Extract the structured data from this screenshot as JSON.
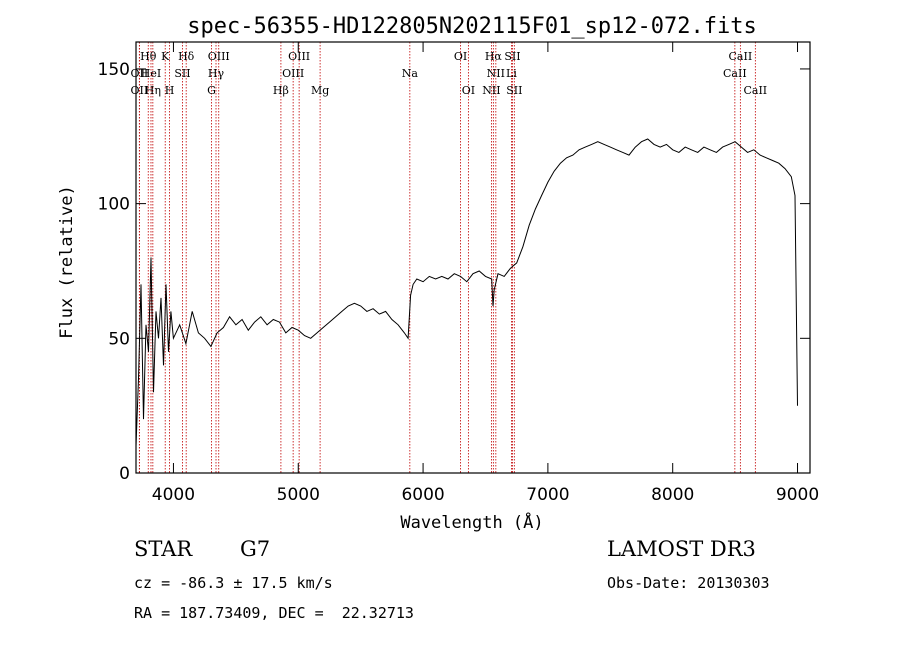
{
  "title": "spec-56355-HD122805N202115F01_sp12-072.fits",
  "footer": {
    "object_class": "STAR",
    "subclass": "G7",
    "survey": "LAMOST DR3",
    "cz": "cz = -86.3 ± 17.5 km/s",
    "obs_date": "Obs-Date: 20130303",
    "coords": "RA = 187.73409, DEC =  22.32713"
  },
  "chart_data": {
    "type": "line",
    "title": "spec-56355-HD122805N202115F01_sp12-072.fits",
    "xlabel": "Wavelength (Å)",
    "ylabel": "Flux (relative)",
    "xlim": [
      3700,
      9100
    ],
    "ylim": [
      0,
      160
    ],
    "xticks": [
      4000,
      5000,
      6000,
      7000,
      8000,
      9000
    ],
    "yticks": [
      0,
      50,
      100,
      150
    ],
    "grid": false,
    "series": [
      {
        "x": [
          3700,
          3720,
          3740,
          3760,
          3780,
          3800,
          3820,
          3840,
          3860,
          3880,
          3900,
          3920,
          3940,
          3960,
          3980,
          4000,
          4050,
          4100,
          4150,
          4200,
          4250,
          4300,
          4350,
          4400,
          4450,
          4500,
          4550,
          4600,
          4650,
          4700,
          4750,
          4800,
          4850,
          4900,
          4950,
          5000,
          5050,
          5100,
          5150,
          5200,
          5250,
          5300,
          5350,
          5400,
          5450,
          5500,
          5550,
          5600,
          5650,
          5700,
          5750,
          5800,
          5850,
          5880,
          5900,
          5920,
          5950,
          6000,
          6050,
          6100,
          6150,
          6200,
          6250,
          6300,
          6350,
          6400,
          6450,
          6500,
          6550,
          6560,
          6570,
          6600,
          6650,
          6700,
          6750,
          6800,
          6850,
          6900,
          6950,
          7000,
          7050,
          7100,
          7150,
          7200,
          7250,
          7300,
          7350,
          7400,
          7450,
          7500,
          7550,
          7600,
          7650,
          7700,
          7750,
          7800,
          7850,
          7900,
          7950,
          8000,
          8050,
          8100,
          8150,
          8200,
          8250,
          8300,
          8350,
          8400,
          8450,
          8500,
          8550,
          8600,
          8650,
          8700,
          8750,
          8800,
          8850,
          8900,
          8950,
          8980,
          9000
        ],
        "y": [
          10,
          35,
          70,
          20,
          55,
          45,
          80,
          30,
          60,
          50,
          65,
          40,
          70,
          45,
          60,
          50,
          55,
          48,
          60,
          52,
          50,
          47,
          52,
          54,
          58,
          55,
          57,
          53,
          56,
          58,
          55,
          57,
          56,
          52,
          54,
          53,
          51,
          50,
          52,
          54,
          56,
          58,
          60,
          62,
          63,
          62,
          60,
          61,
          59,
          60,
          57,
          55,
          52,
          50,
          66,
          70,
          72,
          71,
          73,
          72,
          73,
          72,
          74,
          73,
          71,
          74,
          75,
          73,
          72,
          62,
          68,
          74,
          73,
          76,
          78,
          84,
          92,
          98,
          103,
          108,
          112,
          115,
          117,
          118,
          120,
          121,
          122,
          123,
          122,
          121,
          120,
          119,
          118,
          121,
          123,
          124,
          122,
          121,
          122,
          120,
          119,
          121,
          120,
          119,
          121,
          120,
          119,
          121,
          122,
          123,
          121,
          119,
          120,
          118,
          117,
          116,
          115,
          113,
          110,
          103,
          25
        ]
      }
    ],
    "line_labels": [
      {
        "label": "OII",
        "wavelength": 3727,
        "row": 1
      },
      {
        "label": "OII",
        "wavelength": 3727,
        "row": 2
      },
      {
        "label": "Hθ",
        "wavelength": 3798,
        "row": 0
      },
      {
        "label": "HeI",
        "wavelength": 3820,
        "row": 1
      },
      {
        "label": "Hη",
        "wavelength": 3835,
        "row": 2
      },
      {
        "label": "K",
        "wavelength": 3934,
        "row": 0
      },
      {
        "label": "SII",
        "wavelength": 4072,
        "row": 1
      },
      {
        "label": "H",
        "wavelength": 3969,
        "row": 2
      },
      {
        "label": "Hδ",
        "wavelength": 4102,
        "row": 0
      },
      {
        "label": "OIII",
        "wavelength": 4363,
        "row": 0
      },
      {
        "label": "Hγ",
        "wavelength": 4341,
        "row": 1
      },
      {
        "label": "G",
        "wavelength": 4305,
        "row": 2
      },
      {
        "label": "OIII",
        "wavelength": 5007,
        "row": 0
      },
      {
        "label": "OIII",
        "wavelength": 4959,
        "row": 1
      },
      {
        "label": "Hβ",
        "wavelength": 4861,
        "row": 2
      },
      {
        "label": "Mg",
        "wavelength": 5175,
        "row": 2
      },
      {
        "label": "Na",
        "wavelength": 5894,
        "row": 1
      },
      {
        "label": "OI",
        "wavelength": 6300,
        "row": 0
      },
      {
        "label": "OI",
        "wavelength": 6363,
        "row": 2
      },
      {
        "label": "Hα",
        "wavelength": 6563,
        "row": 0
      },
      {
        "label": "NII",
        "wavelength": 6583,
        "row": 1
      },
      {
        "label": "NII",
        "wavelength": 6548,
        "row": 2
      },
      {
        "label": "SII",
        "wavelength": 6716,
        "row": 0
      },
      {
        "label": "Li",
        "wavelength": 6708,
        "row": 1
      },
      {
        "label": "SII",
        "wavelength": 6731,
        "row": 2
      },
      {
        "label": "CaII",
        "wavelength": 8542,
        "row": 0
      },
      {
        "label": "CaII",
        "wavelength": 8498,
        "row": 1
      },
      {
        "label": "CaII",
        "wavelength": 8662,
        "row": 2
      }
    ],
    "marker_color": "#c00000"
  }
}
